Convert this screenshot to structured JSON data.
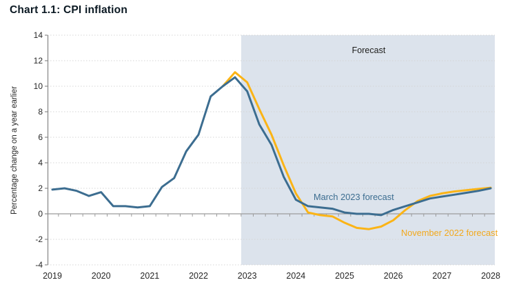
{
  "title": "Chart 1.1: CPI inflation",
  "chart_data": {
    "type": "line",
    "title": "Chart 1.1: CPI inflation",
    "ylabel": "Percentage change on a year earlier",
    "xlabel": "",
    "ylim": [
      -4,
      14
    ],
    "y_ticks": [
      -4,
      -2,
      0,
      2,
      4,
      6,
      8,
      10,
      12,
      14
    ],
    "x_ticks": [
      2019,
      2020,
      2021,
      2022,
      2023,
      2024,
      2025,
      2026,
      2027,
      2028
    ],
    "grid": "horizontal-dotted",
    "legend_position": "inline-annotations",
    "x_resolution": "quarterly",
    "forecast_region": {
      "label": "Forecast",
      "color": "#dce3ec"
    },
    "series": [
      {
        "key": "outturn",
        "label": "",
        "color": "#3c6d90",
        "start_year": 2019,
        "start_quarter": 1,
        "values": [
          1.9,
          2.0,
          1.8,
          1.4,
          1.7,
          0.6,
          0.6,
          0.5,
          0.6,
          2.1,
          2.8,
          4.9,
          6.2,
          9.2,
          10.0,
          10.7
        ]
      },
      {
        "key": "march_2023_forecast",
        "label": "March 2023 forecast",
        "color": "#3c6d90",
        "start_year": 2022,
        "start_quarter": 4,
        "values": [
          10.7,
          9.6,
          7.0,
          5.4,
          2.9,
          1.1,
          0.6,
          0.5,
          0.4,
          0.1,
          0.0,
          0.0,
          -0.1,
          0.3,
          0.6,
          0.9,
          1.2,
          1.35,
          1.5,
          1.65,
          1.8,
          2.0
        ]
      },
      {
        "key": "november_2022_forecast",
        "label": "November 2022 forecast",
        "color": "#fbb416",
        "start_year": 2022,
        "start_quarter": 3,
        "values": [
          10.0,
          11.1,
          10.3,
          8.2,
          6.2,
          3.8,
          1.6,
          0.1,
          -0.1,
          -0.2,
          -0.7,
          -1.1,
          -1.2,
          -1.0,
          -0.5,
          0.3,
          1.0,
          1.4,
          1.6,
          1.75,
          1.85,
          1.95,
          2.05
        ]
      }
    ],
    "annotations": {
      "forecast_label": "Forecast",
      "march_label": "March 2023 forecast",
      "november_label": "November 2022 forecast"
    },
    "label_colors": {
      "march": "#3c6d90",
      "november": "#f2a81c",
      "forecast": "#1d1d1b"
    }
  }
}
